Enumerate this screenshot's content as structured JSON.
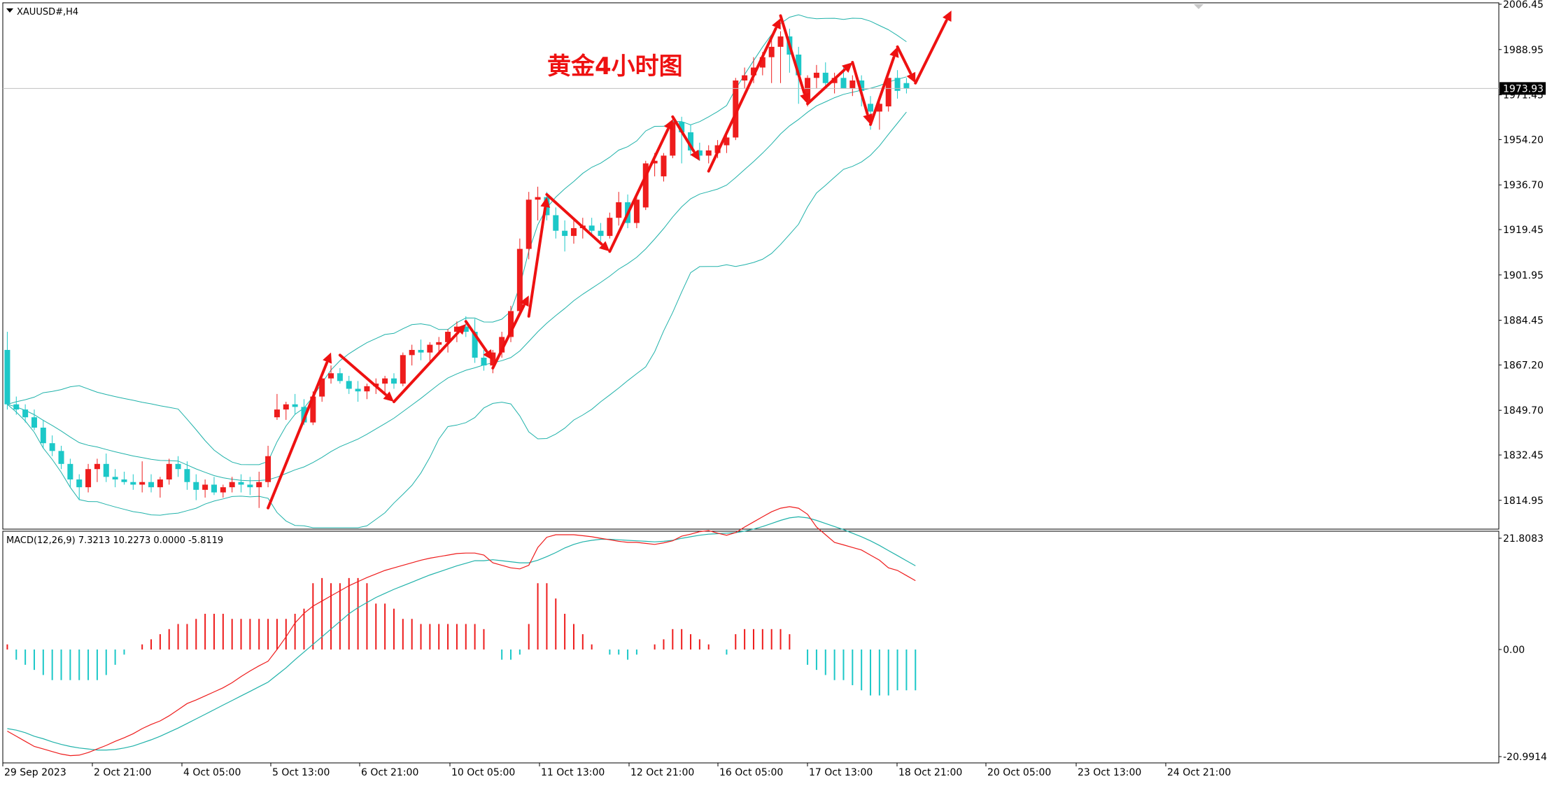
{
  "chart_data": [
    {
      "type": "candlestick",
      "symbol_label": "XAUUSD#,H4",
      "title": "黄金4小时图",
      "current_price_label": "1973.93",
      "y_ticks": [
        "2006.45",
        "1988.95",
        "1971.45",
        "1954.20",
        "1936.70",
        "1919.45",
        "1901.95",
        "1884.45",
        "1867.20",
        "1849.70",
        "1832.45",
        "1814.95"
      ],
      "x_ticks": [
        "29 Sep 2023",
        "2 Oct 21:00",
        "4 Oct 05:00",
        "5 Oct 13:00",
        "6 Oct 21:00",
        "10 Oct 05:00",
        "11 Oct 13:00",
        "12 Oct 21:00",
        "16 Oct 05:00",
        "17 Oct 13:00",
        "18 Oct 21:00",
        "20 Oct 05:00",
        "23 Oct 13:00",
        "24 Oct 21:00"
      ],
      "ylim": [
        1810,
        2007
      ],
      "indicator": "Bollinger Bands",
      "candles": [
        {
          "o": 1873,
          "h": 1880,
          "l": 1850,
          "c": 1852
        },
        {
          "o": 1852,
          "h": 1855,
          "l": 1848,
          "c": 1850
        },
        {
          "o": 1850,
          "h": 1852,
          "l": 1845,
          "c": 1847
        },
        {
          "o": 1847,
          "h": 1850,
          "l": 1842,
          "c": 1843
        },
        {
          "o": 1843,
          "h": 1846,
          "l": 1835,
          "c": 1837
        },
        {
          "o": 1837,
          "h": 1840,
          "l": 1832,
          "c": 1834
        },
        {
          "o": 1834,
          "h": 1836,
          "l": 1827,
          "c": 1829
        },
        {
          "o": 1829,
          "h": 1831,
          "l": 1820,
          "c": 1823
        },
        {
          "o": 1823,
          "h": 1825,
          "l": 1815,
          "c": 1820
        },
        {
          "o": 1820,
          "h": 1829,
          "l": 1818,
          "c": 1827
        },
        {
          "o": 1827,
          "h": 1831,
          "l": 1822,
          "c": 1829
        },
        {
          "o": 1829,
          "h": 1833,
          "l": 1822,
          "c": 1824
        },
        {
          "o": 1824,
          "h": 1827,
          "l": 1820,
          "c": 1823
        },
        {
          "o": 1823,
          "h": 1826,
          "l": 1821,
          "c": 1822
        },
        {
          "o": 1822,
          "h": 1825,
          "l": 1819,
          "c": 1821
        },
        {
          "o": 1821,
          "h": 1830,
          "l": 1818,
          "c": 1822
        },
        {
          "o": 1822,
          "h": 1825,
          "l": 1818,
          "c": 1820
        },
        {
          "o": 1820,
          "h": 1824,
          "l": 1816,
          "c": 1823
        },
        {
          "o": 1823,
          "h": 1831,
          "l": 1821,
          "c": 1829
        },
        {
          "o": 1829,
          "h": 1832,
          "l": 1824,
          "c": 1827
        },
        {
          "o": 1827,
          "h": 1830,
          "l": 1819,
          "c": 1822
        },
        {
          "o": 1822,
          "h": 1825,
          "l": 1815,
          "c": 1819
        },
        {
          "o": 1819,
          "h": 1823,
          "l": 1816,
          "c": 1821
        },
        {
          "o": 1821,
          "h": 1824,
          "l": 1817,
          "c": 1818
        },
        {
          "o": 1818,
          "h": 1821,
          "l": 1816,
          "c": 1820
        },
        {
          "o": 1820,
          "h": 1824,
          "l": 1818,
          "c": 1822
        },
        {
          "o": 1822,
          "h": 1825,
          "l": 1818,
          "c": 1821
        },
        {
          "o": 1821,
          "h": 1824,
          "l": 1817,
          "c": 1820
        },
        {
          "o": 1820,
          "h": 1826,
          "l": 1812,
          "c": 1822
        },
        {
          "o": 1822,
          "h": 1836,
          "l": 1820,
          "c": 1832
        },
        {
          "o": 1847,
          "h": 1856,
          "l": 1846,
          "c": 1850
        },
        {
          "o": 1850,
          "h": 1853,
          "l": 1846,
          "c": 1852
        },
        {
          "o": 1852,
          "h": 1856,
          "l": 1848,
          "c": 1851
        },
        {
          "o": 1851,
          "h": 1854,
          "l": 1844,
          "c": 1845
        },
        {
          "o": 1845,
          "h": 1857,
          "l": 1844,
          "c": 1855
        },
        {
          "o": 1855,
          "h": 1863,
          "l": 1853,
          "c": 1862
        },
        {
          "o": 1862,
          "h": 1867,
          "l": 1860,
          "c": 1864
        },
        {
          "o": 1864,
          "h": 1866,
          "l": 1860,
          "c": 1861
        },
        {
          "o": 1861,
          "h": 1863,
          "l": 1856,
          "c": 1858
        },
        {
          "o": 1858,
          "h": 1861,
          "l": 1853,
          "c": 1857
        },
        {
          "o": 1857,
          "h": 1860,
          "l": 1854,
          "c": 1859
        },
        {
          "o": 1859,
          "h": 1862,
          "l": 1856,
          "c": 1860
        },
        {
          "o": 1860,
          "h": 1863,
          "l": 1856,
          "c": 1862
        },
        {
          "o": 1862,
          "h": 1864,
          "l": 1858,
          "c": 1860
        },
        {
          "o": 1860,
          "h": 1872,
          "l": 1859,
          "c": 1871
        },
        {
          "o": 1871,
          "h": 1875,
          "l": 1867,
          "c": 1873
        },
        {
          "o": 1873,
          "h": 1877,
          "l": 1869,
          "c": 1872
        },
        {
          "o": 1872,
          "h": 1876,
          "l": 1868,
          "c": 1875
        },
        {
          "o": 1875,
          "h": 1878,
          "l": 1871,
          "c": 1876
        },
        {
          "o": 1876,
          "h": 1881,
          "l": 1872,
          "c": 1880
        },
        {
          "o": 1880,
          "h": 1884,
          "l": 1876,
          "c": 1882
        },
        {
          "o": 1882,
          "h": 1886,
          "l": 1878,
          "c": 1880
        },
        {
          "o": 1880,
          "h": 1885,
          "l": 1868,
          "c": 1870
        },
        {
          "o": 1870,
          "h": 1873,
          "l": 1865,
          "c": 1867
        },
        {
          "o": 1867,
          "h": 1873,
          "l": 1864,
          "c": 1872
        },
        {
          "o": 1872,
          "h": 1880,
          "l": 1870,
          "c": 1878
        },
        {
          "o": 1878,
          "h": 1890,
          "l": 1876,
          "c": 1888
        },
        {
          "o": 1888,
          "h": 1916,
          "l": 1886,
          "c": 1912
        },
        {
          "o": 1912,
          "h": 1934,
          "l": 1908,
          "c": 1931
        },
        {
          "o": 1931,
          "h": 1936,
          "l": 1923,
          "c": 1932
        },
        {
          "o": 1932,
          "h": 1934,
          "l": 1923,
          "c": 1925
        },
        {
          "o": 1925,
          "h": 1928,
          "l": 1916,
          "c": 1919
        },
        {
          "o": 1919,
          "h": 1923,
          "l": 1911,
          "c": 1917
        },
        {
          "o": 1917,
          "h": 1923,
          "l": 1914,
          "c": 1920
        },
        {
          "o": 1920,
          "h": 1924,
          "l": 1916,
          "c": 1921
        },
        {
          "o": 1921,
          "h": 1924,
          "l": 1917,
          "c": 1919
        },
        {
          "o": 1919,
          "h": 1922,
          "l": 1915,
          "c": 1917
        },
        {
          "o": 1917,
          "h": 1926,
          "l": 1916,
          "c": 1924
        },
        {
          "o": 1924,
          "h": 1934,
          "l": 1921,
          "c": 1930
        },
        {
          "o": 1930,
          "h": 1933,
          "l": 1920,
          "c": 1922
        },
        {
          "o": 1922,
          "h": 1933,
          "l": 1920,
          "c": 1931
        },
        {
          "o": 1928,
          "h": 1946,
          "l": 1927,
          "c": 1945
        },
        {
          "o": 1945,
          "h": 1949,
          "l": 1940,
          "c": 1946
        },
        {
          "o": 1940,
          "h": 1949,
          "l": 1938,
          "c": 1948
        },
        {
          "o": 1948,
          "h": 1963,
          "l": 1947,
          "c": 1961
        },
        {
          "o": 1961,
          "h": 1963,
          "l": 1945,
          "c": 1957
        },
        {
          "o": 1957,
          "h": 1960,
          "l": 1948,
          "c": 1950
        },
        {
          "o": 1950,
          "h": 1953,
          "l": 1946,
          "c": 1948
        },
        {
          "o": 1948,
          "h": 1952,
          "l": 1945,
          "c": 1950
        },
        {
          "o": 1949,
          "h": 1954,
          "l": 1947,
          "c": 1952
        },
        {
          "o": 1952,
          "h": 1957,
          "l": 1949,
          "c": 1955
        },
        {
          "o": 1955,
          "h": 1978,
          "l": 1954,
          "c": 1977
        },
        {
          "o": 1977,
          "h": 1982,
          "l": 1974,
          "c": 1979
        },
        {
          "o": 1979,
          "h": 1986,
          "l": 1976,
          "c": 1982
        },
        {
          "o": 1982,
          "h": 1988,
          "l": 1979,
          "c": 1986
        },
        {
          "o": 1986,
          "h": 1994,
          "l": 1976,
          "c": 1990
        },
        {
          "o": 1990,
          "h": 1996,
          "l": 1976,
          "c": 1994
        },
        {
          "o": 1994,
          "h": 1997,
          "l": 1980,
          "c": 1987
        },
        {
          "o": 1987,
          "h": 1990,
          "l": 1968,
          "c": 1979
        },
        {
          "o": 1969,
          "h": 1979,
          "l": 1967,
          "c": 1978
        },
        {
          "o": 1978,
          "h": 1983,
          "l": 1974,
          "c": 1980
        },
        {
          "o": 1980,
          "h": 1984,
          "l": 1975,
          "c": 1976
        },
        {
          "o": 1976,
          "h": 1980,
          "l": 1972,
          "c": 1978
        },
        {
          "o": 1978,
          "h": 1982,
          "l": 1974,
          "c": 1974
        },
        {
          "o": 1974,
          "h": 1979,
          "l": 1971,
          "c": 1977
        },
        {
          "o": 1977,
          "h": 1979,
          "l": 1967,
          "c": 1973
        },
        {
          "o": 1968,
          "h": 1971,
          "l": 1958,
          "c": 1965
        },
        {
          "o": 1965,
          "h": 1970,
          "l": 1958,
          "c": 1968
        },
        {
          "o": 1967,
          "h": 1977,
          "l": 1965,
          "c": 1978
        },
        {
          "o": 1978,
          "h": 1981,
          "l": 1970,
          "c": 1973
        },
        {
          "o": 1976,
          "h": 1978,
          "l": 1972,
          "c": 1973.93
        }
      ],
      "arrows": [
        {
          "from": [
            29,
            1812
          ],
          "to": [
            36,
            1872
          ]
        },
        {
          "from": [
            37,
            1871
          ],
          "to": [
            43,
            1853
          ]
        },
        {
          "from": [
            43,
            1853
          ],
          "to": [
            51,
            1883
          ]
        },
        {
          "from": [
            51,
            1884
          ],
          "to": [
            54,
            1869
          ]
        },
        {
          "from": [
            54,
            1866
          ],
          "to": [
            58,
            1894
          ]
        },
        {
          "from": [
            58,
            1886
          ],
          "to": [
            60,
            1932
          ]
        },
        {
          "from": [
            60,
            1933
          ],
          "to": [
            67,
            1911
          ]
        },
        {
          "from": [
            67,
            1911
          ],
          "to": [
            74,
            1962
          ]
        },
        {
          "from": [
            74,
            1963
          ],
          "to": [
            77,
            1946
          ]
        },
        {
          "from": [
            78,
            1942
          ],
          "to": [
            86,
            2001
          ]
        },
        {
          "from": [
            86,
            2002
          ],
          "to": [
            89,
            1968
          ]
        },
        {
          "from": [
            89,
            1968
          ],
          "to": [
            94,
            1984
          ]
        },
        {
          "from": [
            94,
            1984
          ],
          "to": [
            96,
            1960
          ]
        },
        {
          "from": [
            96,
            1960
          ],
          "to": [
            99,
            1990
          ]
        },
        {
          "from": [
            99,
            1990
          ],
          "to": [
            101,
            1976
          ]
        },
        {
          "from": [
            101,
            1976
          ],
          "to": [
            105,
            2004
          ]
        }
      ]
    },
    {
      "type": "bar+line",
      "title": "MACD(12,26,9) 7.3213 10.2273 0.0000 -5.8119",
      "y_ticks": [
        "21.8083",
        "0.00",
        "-20.9914"
      ],
      "ylim": [
        -20.9914,
        21.8083
      ],
      "histogram": [
        1,
        -2,
        -3,
        -4,
        -5,
        -6,
        -6,
        -6,
        -6,
        -6,
        -6,
        -5,
        -3,
        -1,
        0,
        1,
        2,
        3,
        4,
        5,
        5,
        6,
        7,
        7,
        7,
        6,
        6,
        6,
        6,
        6,
        6,
        6,
        7,
        8,
        13,
        14,
        13,
        13,
        14,
        14,
        13,
        9,
        9,
        8,
        6,
        6,
        5,
        5,
        5,
        5,
        5,
        5,
        5,
        4,
        0,
        -2,
        -2,
        -1,
        5,
        13,
        13,
        10,
        7,
        5,
        3,
        1,
        0,
        -1,
        -1,
        -2,
        -1,
        0,
        1,
        2,
        4,
        4,
        3,
        2,
        1,
        0,
        -1,
        3,
        4,
        4,
        4,
        4,
        4,
        3,
        0,
        -3,
        -4,
        -5,
        -6,
        -6,
        -7,
        -8,
        -9,
        -9,
        -9,
        -8,
        -8,
        -8
      ],
      "macd_line": [
        -16,
        -17,
        -18,
        -19,
        -19.5,
        -20,
        -20.5,
        -20.8,
        -20.7,
        -20.2,
        -19.5,
        -18.8,
        -18,
        -17.3,
        -16.5,
        -15.5,
        -14.7,
        -14,
        -13,
        -11.8,
        -10.6,
        -9.9,
        -9.1,
        -8.3,
        -7.5,
        -6.5,
        -5.3,
        -4.2,
        -3.2,
        -2.3,
        0,
        2.5,
        5.2,
        7.1,
        8.5,
        9.5,
        10.5,
        11.5,
        12.5,
        13.3,
        14.1,
        14.8,
        15.5,
        16,
        16.5,
        17,
        17.5,
        17.9,
        18.2,
        18.5,
        18.8,
        18.9,
        18.9,
        18.5,
        17,
        16.5,
        16,
        15.8,
        16.5,
        20,
        22,
        22.5,
        22.5,
        22.5,
        22.3,
        22.1,
        21.8,
        21.5,
        21.2,
        21,
        21,
        20.8,
        20.6,
        20.9,
        21.3,
        22.2,
        22.6,
        23.1,
        23.3,
        22.8,
        22.4,
        22.9,
        24,
        25,
        26,
        27,
        27.7,
        28,
        27.7,
        26.5,
        24,
        22.5,
        21,
        20.5,
        20,
        19.5,
        18.5,
        17.5,
        16,
        15.5,
        14.5,
        13.5
      ],
      "signal_line": [
        -15.5,
        -15.8,
        -16.3,
        -17,
        -17.5,
        -18.1,
        -18.6,
        -19,
        -19.3,
        -19.5,
        -19.7,
        -19.7,
        -19.6,
        -19.3,
        -18.9,
        -18.3,
        -17.7,
        -17,
        -16.2,
        -15.4,
        -14.5,
        -13.6,
        -12.7,
        -11.8,
        -10.9,
        -10,
        -9.1,
        -8.2,
        -7.3,
        -6.4,
        -5,
        -3.6,
        -2,
        -0.5,
        1,
        2.5,
        4,
        5.5,
        7,
        8.2,
        9.2,
        10.2,
        11,
        11.8,
        12.5,
        13.2,
        13.9,
        14.6,
        15.2,
        15.8,
        16.4,
        16.9,
        17.4,
        17.4,
        17.6,
        17.4,
        17.2,
        17,
        17,
        17.5,
        18.2,
        19,
        19.9,
        20.6,
        21.1,
        21.4,
        21.6,
        21.6,
        21.5,
        21.4,
        21.3,
        21.2,
        21.1,
        21.2,
        21.4,
        21.8,
        22.1,
        22.4,
        22.6,
        22.7,
        22.8,
        22.9,
        23.2,
        23.6,
        24.1,
        24.7,
        25.3,
        25.8,
        26,
        25.8,
        25.3,
        24.7,
        24.1,
        23.5,
        22.8,
        22.1,
        21.3,
        20.4,
        19.4,
        18.4,
        17.4,
        16.4
      ]
    }
  ]
}
